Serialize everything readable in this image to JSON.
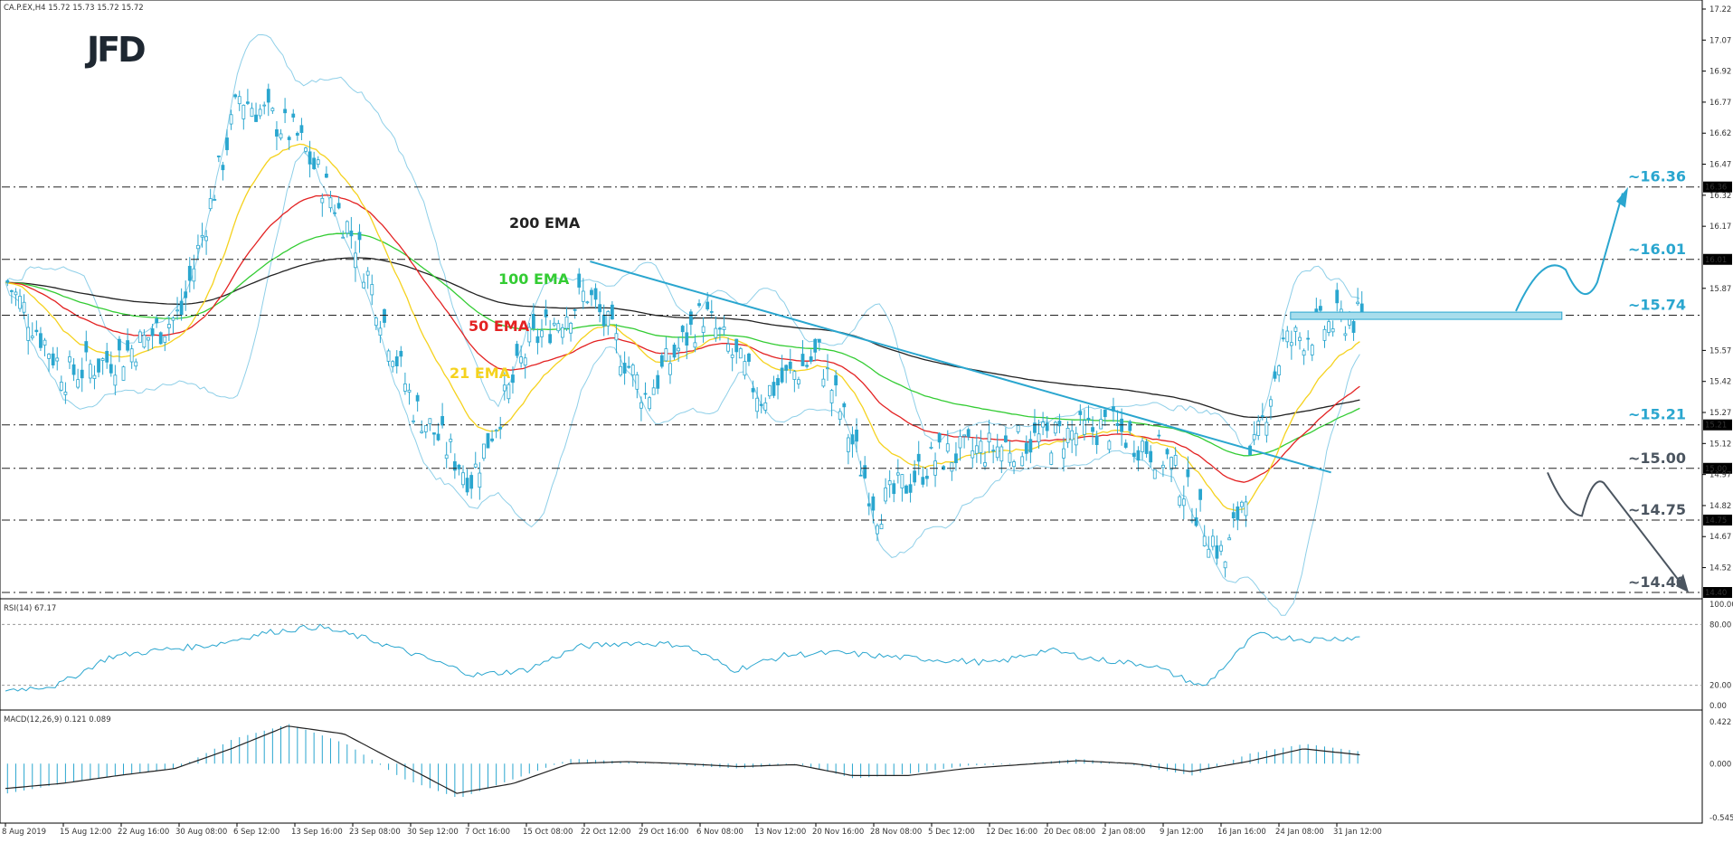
{
  "header": {
    "symbol_line": "CA.P.EX,H4  15.72 15.73 15.72 15.72",
    "logo": "JFD"
  },
  "colors": {
    "candles": "#2aa6cf",
    "ema200": "#222222",
    "ema100": "#33cc33",
    "ema50": "#e32222",
    "ema21": "#f5d21e",
    "bollinger": "#8ecfe8",
    "trendline": "#2aa6cf",
    "bull_arrow": "#2aa6cf",
    "bear_arrow": "#4b5560",
    "level_lines": "#222222",
    "rsi": "#2aa6cf",
    "macd_hist": "#2aa6cf",
    "macd_signal": "#222222"
  },
  "chart_data": [
    {
      "type": "candlestick",
      "title": "",
      "x_tick_labels": [
        "8 Aug 2019",
        "15 Aug 12:00",
        "22 Aug 16:00",
        "30 Aug 08:00",
        "6 Sep 12:00",
        "13 Sep 16:00",
        "23 Sep 08:00",
        "30 Sep 12:00",
        "7 Oct 16:00",
        "15 Oct 08:00",
        "22 Oct 12:00",
        "29 Oct 16:00",
        "6 Nov 08:00",
        "13 Nov 12:00",
        "20 Nov 16:00",
        "28 Nov 08:00",
        "5 Dec 12:00",
        "12 Dec 16:00",
        "20 Dec 08:00",
        "2 Jan 08:00",
        "9 Jan 12:00",
        "16 Jan 16:00",
        "24 Jan 08:00",
        "31 Jan 12:00"
      ],
      "y_tick_labels": [
        "17.22",
        "17.07",
        "16.92",
        "16.77",
        "16.62",
        "16.47",
        "16.32",
        "16.17",
        "15.87",
        "15.57",
        "15.42",
        "15.27",
        "15.12",
        "14.97",
        "14.82",
        "14.67",
        "14.52"
      ],
      "ylim": [
        14.4,
        17.22
      ],
      "price_series": [
        {
          "date": "8 Aug 2019",
          "close": 15.9
        },
        {
          "date": "15 Aug 12:00",
          "close": 15.45
        },
        {
          "date": "22 Aug 16:00",
          "close": 15.55
        },
        {
          "date": "30 Aug 08:00",
          "close": 15.75
        },
        {
          "date": "6 Sep 12:00",
          "close": 16.8
        },
        {
          "date": "13 Sep 16:00",
          "close": 16.6
        },
        {
          "date": "23 Sep 08:00",
          "close": 16.1
        },
        {
          "date": "30 Sep 12:00",
          "close": 15.3
        },
        {
          "date": "7 Oct 16:00",
          "close": 14.95
        },
        {
          "date": "15 Oct 08:00",
          "close": 15.6
        },
        {
          "date": "22 Oct 12:00",
          "close": 15.85
        },
        {
          "date": "29 Oct 16:00",
          "close": 15.35
        },
        {
          "date": "6 Nov 08:00",
          "close": 15.75
        },
        {
          "date": "13 Nov 12:00",
          "close": 15.35
        },
        {
          "date": "20 Nov 16:00",
          "close": 15.55
        },
        {
          "date": "28 Nov 08:00",
          "close": 14.8
        },
        {
          "date": "5 Dec 12:00",
          "close": 15.05
        },
        {
          "date": "12 Dec 16:00",
          "close": 15.1
        },
        {
          "date": "20 Dec 08:00",
          "close": 15.15
        },
        {
          "date": "2 Jan 08:00",
          "close": 15.2
        },
        {
          "date": "9 Jan 12:00",
          "close": 15.05
        },
        {
          "date": "16 Jan 16:00",
          "close": 14.55
        },
        {
          "date": "24 Jan 08:00",
          "close": 15.6
        },
        {
          "date": "31 Jan 12:00",
          "close": 15.72
        }
      ],
      "indicators": [
        "200 EMA",
        "100 EMA",
        "50 EMA",
        "21 EMA"
      ],
      "levels": [
        {
          "value": 16.36,
          "label": "~16.36",
          "axis_tag": "16.36",
          "color": "#2aa6cf"
        },
        {
          "value": 16.01,
          "label": "~16.01",
          "axis_tag": "16.01",
          "color": "#2aa6cf"
        },
        {
          "value": 15.74,
          "label": "~15.74",
          "axis_tag": "",
          "color": "#2aa6cf"
        },
        {
          "value": 15.21,
          "label": "~15.21",
          "axis_tag": "15.21",
          "color": "#2aa6cf"
        },
        {
          "value": 15.0,
          "label": "~15.00",
          "axis_tag": "15.00",
          "color": "#4b5560"
        },
        {
          "value": 14.75,
          "label": "~14.75",
          "axis_tag": "14.75",
          "color": "#4b5560"
        },
        {
          "value": 14.4,
          "label": "~14.40",
          "axis_tag": "14.40",
          "color": "#4b5560"
        }
      ]
    },
    {
      "type": "line",
      "title": "RSI(14) 67.17",
      "ylim": [
        0,
        100
      ],
      "y_tick_labels": [
        "100.00",
        "80.00",
        "20.00",
        "0.00"
      ],
      "reference_lines": [
        80,
        20
      ],
      "values": [
        15,
        20,
        48,
        55,
        60,
        72,
        78,
        65,
        48,
        30,
        35,
        58,
        62,
        60,
        35,
        50,
        52,
        48,
        45,
        42,
        55,
        45,
        40,
        18,
        70,
        65,
        67.17
      ]
    },
    {
      "type": "histogram",
      "title": "MACD(12,26,9) 0.121 0.089",
      "ylim": [
        -0.545,
        0.422
      ],
      "y_tick_labels": [
        "0.422",
        "0.000",
        "-0.545"
      ],
      "zero_line": 0,
      "macd_values": [
        -0.3,
        -0.2,
        -0.12,
        -0.05,
        0.25,
        0.4,
        0.2,
        -0.15,
        -0.35,
        -0.15,
        0.05,
        0.02,
        -0.02,
        -0.05,
        0.0,
        -0.15,
        -0.1,
        -0.02,
        0.0,
        0.05,
        -0.02,
        -0.12,
        0.1,
        0.2,
        0.12
      ],
      "signal_values": [
        -0.25,
        -0.2,
        -0.12,
        -0.05,
        0.15,
        0.38,
        0.3,
        0.0,
        -0.3,
        -0.2,
        0.0,
        0.02,
        0.0,
        -0.03,
        -0.01,
        -0.12,
        -0.12,
        -0.05,
        -0.01,
        0.03,
        0.0,
        -0.08,
        0.02,
        0.15,
        0.089
      ]
    }
  ]
}
